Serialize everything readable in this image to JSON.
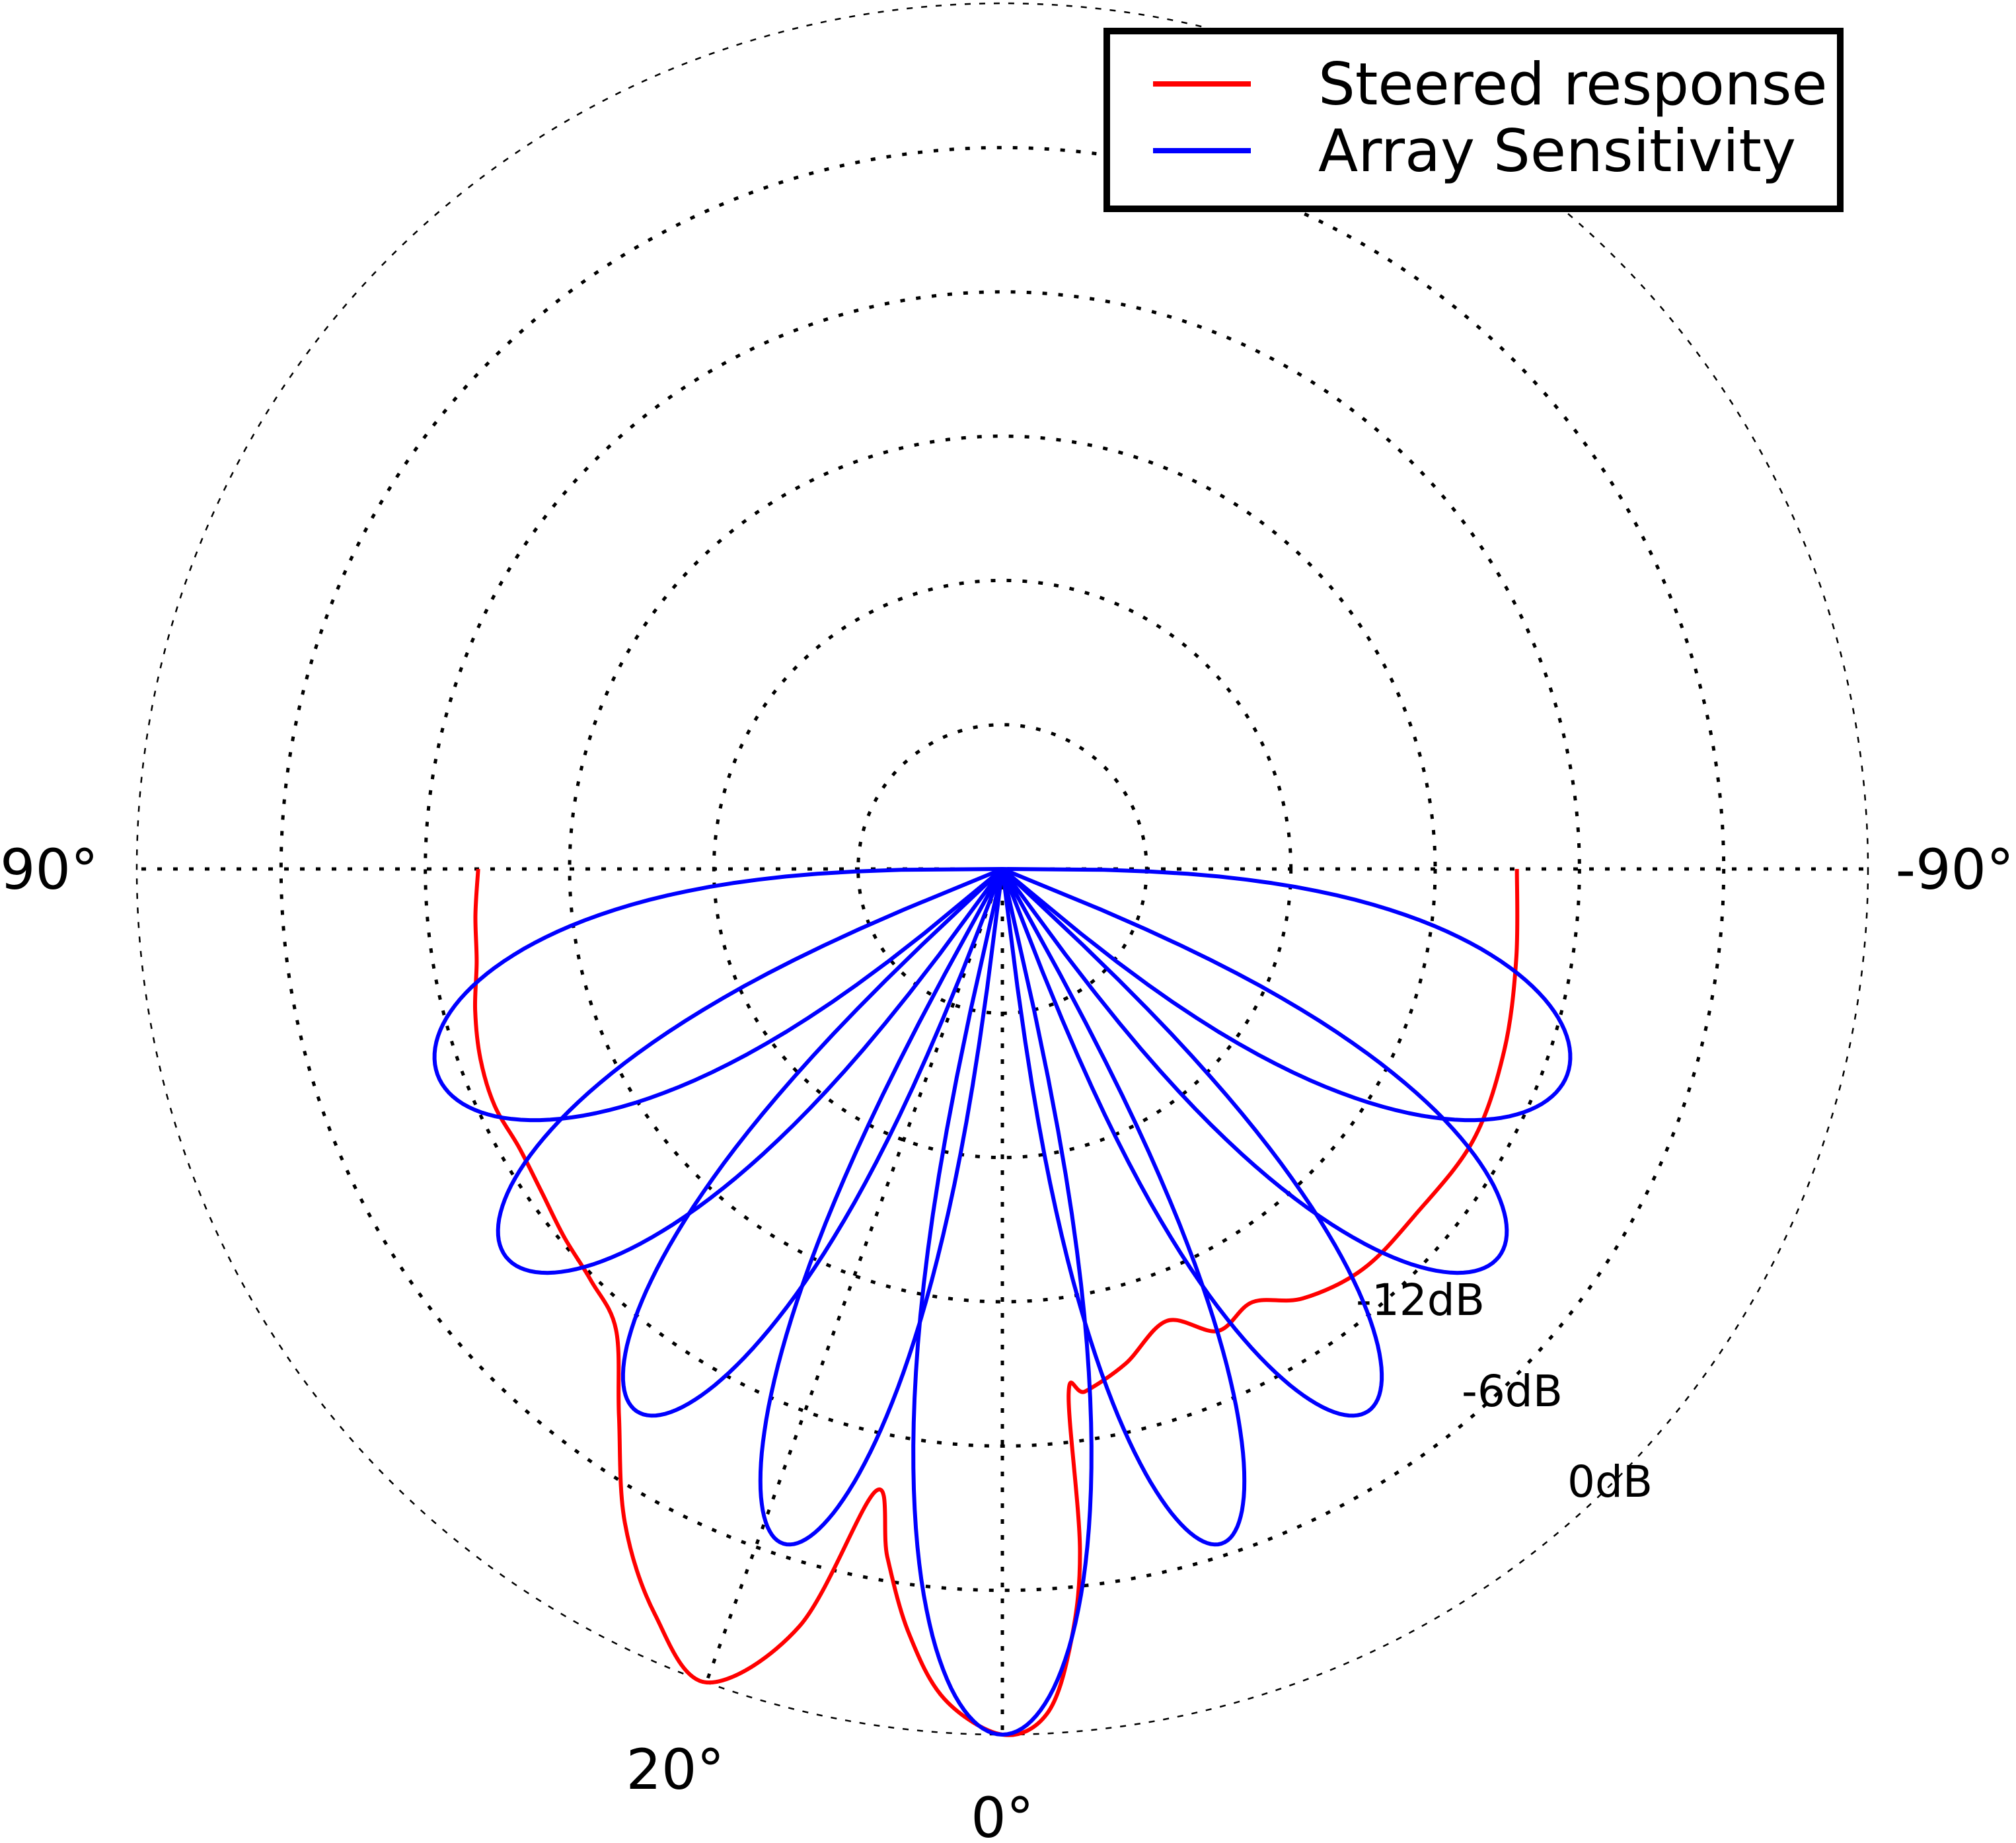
{
  "chart_data": {
    "type": "polar",
    "title": "",
    "angle_direction": "0° at bottom; positive angles toward the left",
    "angle_range_deg": [
      -90,
      90
    ],
    "angle_labels": [
      {
        "text": "90°",
        "angle_deg": 90
      },
      {
        "text": "-90°",
        "angle_deg": -90
      },
      {
        "text": "20°",
        "angle_deg": 20
      },
      {
        "text": "0°",
        "angle_deg": 0
      }
    ],
    "radial_axis": {
      "unit": "dB",
      "rings_db": [
        -30,
        -24,
        -18,
        -12,
        -6,
        0
      ],
      "labels": [
        {
          "text": "-12dB",
          "value_db": -12
        },
        {
          "text": "-6dB",
          "value_db": -6
        },
        {
          "text": "0dB",
          "value_db": 0
        }
      ],
      "min_db": -36
    },
    "grid": true,
    "legend": {
      "position": "top-right"
    },
    "series": [
      {
        "name": "Steered response",
        "color": "#ff0000",
        "points": [
          {
            "angle": 90,
            "db": -14.2
          },
          {
            "angle": 85,
            "db": -14.0
          },
          {
            "angle": 80,
            "db": -13.8
          },
          {
            "angle": 75,
            "db": -13.3
          },
          {
            "angle": 70,
            "db": -12.9
          },
          {
            "angle": 65,
            "db": -12.7
          },
          {
            "angle": 60,
            "db": -12.8
          },
          {
            "angle": 55,
            "db": -12.6
          },
          {
            "angle": 50,
            "db": -12.2
          },
          {
            "angle": 45,
            "db": -11.8
          },
          {
            "angle": 40,
            "db": -11.0
          },
          {
            "angle": 35,
            "db": -8.2
          },
          {
            "angle": 30,
            "db": -4.6
          },
          {
            "angle": 25,
            "db": -1.8
          },
          {
            "angle": 20,
            "db": 0.0
          },
          {
            "angle": 15,
            "db": -3.4
          },
          {
            "angle": 11.5,
            "db": -9.6
          },
          {
            "angle": 9.5,
            "db": -7.0
          },
          {
            "angle": 7,
            "db": -4.0
          },
          {
            "angle": 4,
            "db": -1.4
          },
          {
            "angle": 0,
            "db": 0.0
          },
          {
            "angle": -3,
            "db": -0.8
          },
          {
            "angle": -5,
            "db": -3.6
          },
          {
            "angle": -6.5,
            "db": -7.5
          },
          {
            "angle": -7.2,
            "db": -14.0
          },
          {
            "angle": -9,
            "db": -14.0
          },
          {
            "angle": -14,
            "db": -14.8
          },
          {
            "angle": -20,
            "db": -16.0
          },
          {
            "angle": -25,
            "db": -14.8
          },
          {
            "angle": -30,
            "db": -15.2
          },
          {
            "angle": -35,
            "db": -14.2
          },
          {
            "angle": -42,
            "db": -13.6
          },
          {
            "angle": -50,
            "db": -13.6
          },
          {
            "angle": -60,
            "db": -13.4
          },
          {
            "angle": -70,
            "db": -13.8
          },
          {
            "angle": -80,
            "db": -14.3
          },
          {
            "angle": -90,
            "db": -14.6
          }
        ]
      },
      {
        "name": "Array Sensitivity",
        "color": "#0000ff",
        "lobes": [
          {
            "peak_angle": 0,
            "width_deg": 26,
            "peak_db": 0
          },
          {
            "peak_angle": 18,
            "width_deg": 22,
            "peak_db": -6.5
          },
          {
            "peak_angle": -18,
            "width_deg": 22,
            "peak_db": -6.5
          },
          {
            "peak_angle": 34,
            "width_deg": 26,
            "peak_db": -8.8
          },
          {
            "peak_angle": -34,
            "width_deg": 26,
            "peak_db": -8.8
          },
          {
            "peak_angle": 52,
            "width_deg": 32,
            "peak_db": -9.8
          },
          {
            "peak_angle": -52,
            "width_deg": 32,
            "peak_db": -9.8
          },
          {
            "peak_angle": 70,
            "width_deg": 40,
            "peak_db": -11.0
          },
          {
            "peak_angle": -70,
            "width_deg": 40,
            "peak_db": -11.0
          }
        ]
      }
    ]
  }
}
